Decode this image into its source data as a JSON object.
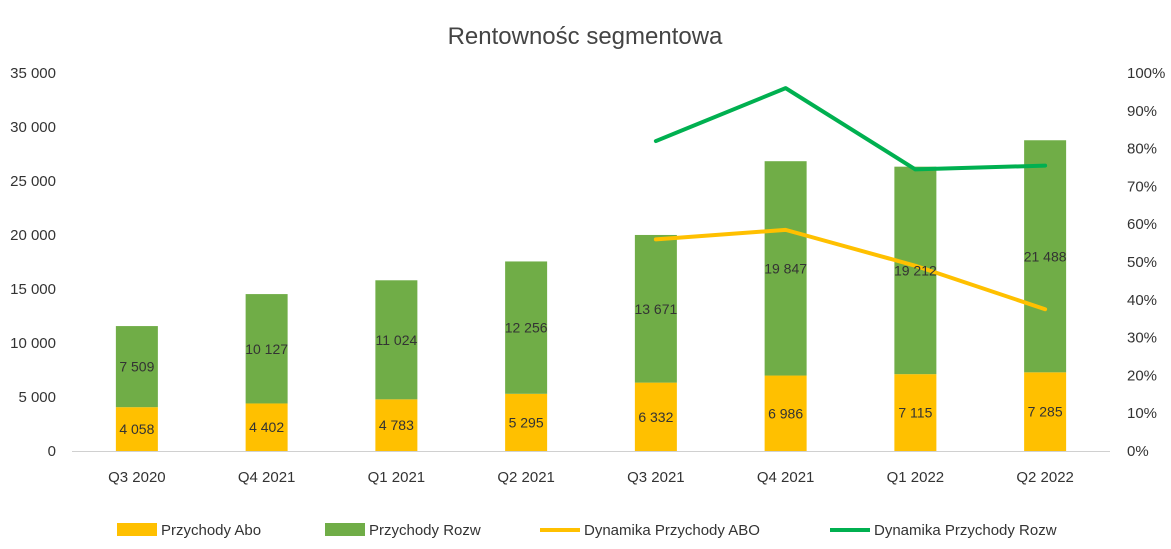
{
  "chart_data": {
    "type": "bar",
    "stacked": true,
    "title": "Rentownośc segmentowa",
    "categories": [
      "Q3 2020",
      "Q4 2021",
      "Q1 2021",
      "Q2 2021",
      "Q3 2021",
      "Q4 2021",
      "Q1 2022",
      "Q2 2022"
    ],
    "series": [
      {
        "name": "Przychody Abo",
        "type": "bar",
        "axis": "left",
        "color": "#FFC000",
        "values": [
          4058,
          4402,
          4783,
          5295,
          6332,
          6986,
          7115,
          7285
        ],
        "labels": [
          "4 058",
          "4 402",
          "4 783",
          "5 295",
          "6 332",
          "6 986",
          "7 115",
          "7 285"
        ]
      },
      {
        "name": "Przychody Rozw",
        "type": "bar",
        "axis": "left",
        "color": "#70AD47",
        "values": [
          7509,
          10127,
          11024,
          12256,
          13671,
          19847,
          19212,
          21488
        ],
        "labels": [
          "7 509",
          "10 127",
          "11 024",
          "12 256",
          "13 671",
          "19 847",
          "19 212",
          "21 488"
        ]
      },
      {
        "name": "Dynamika Przychody ABO",
        "type": "line",
        "axis": "right",
        "color": "#FFC000",
        "values": [
          null,
          null,
          null,
          null,
          56,
          58.5,
          49,
          37.5
        ]
      },
      {
        "name": "Dynamika Przychody Rozw",
        "type": "line",
        "axis": "right",
        "color": "#00B050",
        "values": [
          null,
          null,
          null,
          null,
          82,
          96,
          74.5,
          75.5
        ]
      }
    ],
    "y_left": {
      "min": 0,
      "max": 35000,
      "step": 5000,
      "ticks": [
        "0",
        "5 000",
        "10 000",
        "15 000",
        "20 000",
        "25 000",
        "30 000",
        "35 000"
      ]
    },
    "y_right": {
      "min": 0,
      "max": 100,
      "step": 10,
      "ticks": [
        "0%",
        "10%",
        "20%",
        "30%",
        "40%",
        "50%",
        "60%",
        "70%",
        "80%",
        "90%",
        "100%"
      ]
    },
    "grid": false,
    "legend_position": "bottom"
  }
}
